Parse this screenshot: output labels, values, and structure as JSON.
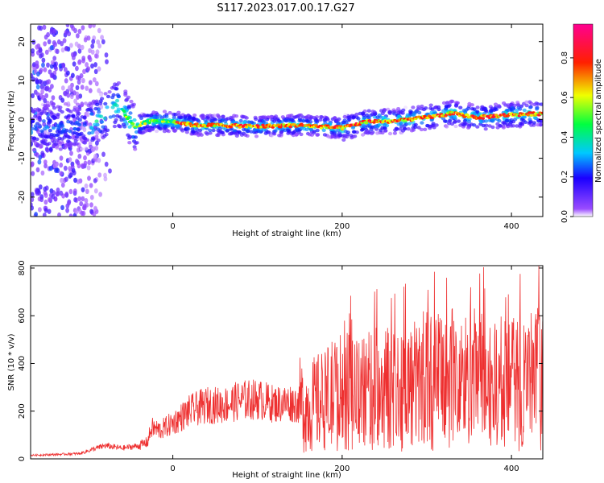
{
  "figure": {
    "title": "S117.2023.017.00.17.G27"
  },
  "chart_data": [
    {
      "type": "heatmap",
      "title": "S117.2023.017.00.17.G27",
      "xlabel": "Height of straight line (km)",
      "ylabel": "Frequency (Hz)",
      "xlim": [
        -168,
        437
      ],
      "ylim": [
        -25,
        24.5
      ],
      "xticks": [
        0,
        200,
        400
      ],
      "yticks": [
        20,
        10,
        0,
        -10,
        -20
      ],
      "colormap": "rainbow (purple -> blue -> cyan -> green -> yellow -> red -> magenta)",
      "colorbar": {
        "label": "Normalized spectral amplitude",
        "range": [
          0,
          0.97
        ],
        "ticks": [
          "0.0",
          "0.2",
          "0.4",
          "0.6",
          "0.8"
        ]
      },
      "ridge": {
        "description": "dominant frequency track vs height",
        "height_km": [
          -150,
          -120,
          -100,
          -80,
          -65,
          -55,
          -45,
          -30,
          0,
          25,
          50,
          100,
          150,
          200,
          230,
          260,
          300,
          330,
          360,
          400,
          437
        ],
        "frequency_hz": [
          -2,
          -2,
          -1.5,
          1,
          4,
          1,
          -2,
          -0.5,
          -0.5,
          -1.5,
          -1.5,
          -1.8,
          -1.5,
          -2.2,
          -0.5,
          -0.5,
          0.5,
          1.5,
          0.5,
          1.2,
          1.5
        ]
      },
      "noise_region": {
        "height_km": [
          -168,
          -110
        ],
        "frequency_hz": [
          -25,
          24.5
        ]
      }
    },
    {
      "type": "line",
      "xlabel": "Height of straight line (km)",
      "ylabel": "SNR (10 * v/v)",
      "xlim": [
        -168,
        437
      ],
      "ylim": [
        0,
        810
      ],
      "xticks": [
        0,
        200,
        400
      ],
      "yticks": [
        0,
        200,
        400,
        600,
        800
      ],
      "color": "#ee3030",
      "x": [
        -168,
        -140,
        -110,
        -90,
        -80,
        -60,
        -40,
        -30,
        -25,
        -15,
        0,
        20,
        40,
        60,
        80,
        100,
        120,
        140,
        160,
        180,
        200,
        220,
        240,
        260,
        280,
        300,
        320,
        340,
        360,
        380,
        400,
        420,
        437
      ],
      "y": [
        15,
        18,
        22,
        45,
        55,
        45,
        55,
        70,
        130,
        120,
        150,
        200,
        225,
        225,
        245,
        250,
        230,
        235,
        215,
        250,
        285,
        265,
        295,
        300,
        305,
        320,
        330,
        320,
        345,
        300,
        310,
        330,
        330
      ]
    }
  ]
}
